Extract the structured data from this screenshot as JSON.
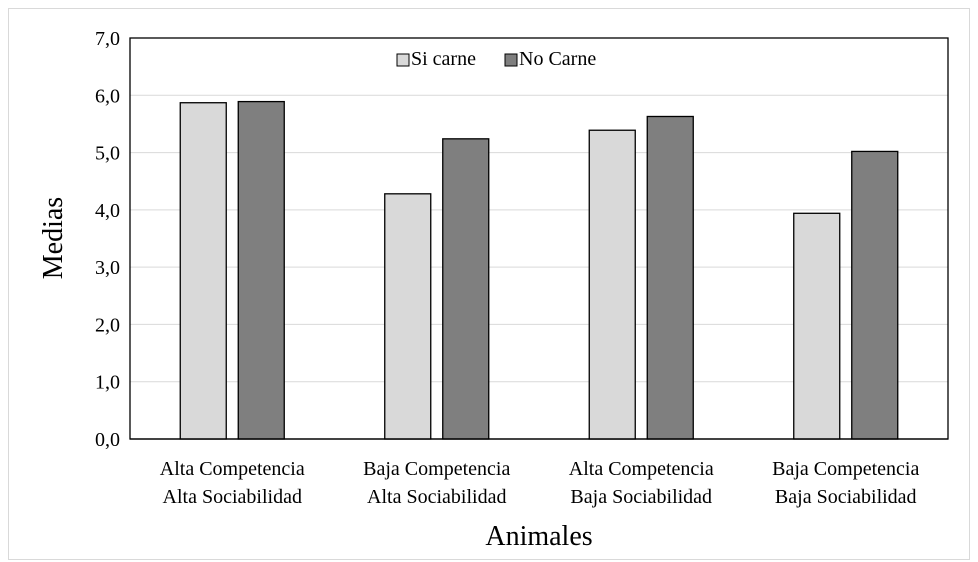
{
  "chart_data": {
    "type": "bar",
    "title": "",
    "xlabel": "Animales",
    "ylabel": "Medias",
    "ylim": [
      0,
      7
    ],
    "yticks": [
      "0,0",
      "1,0",
      "2,0",
      "3,0",
      "4,0",
      "5,0",
      "6,0",
      "7,0"
    ],
    "grid": true,
    "legend_position": "top-center",
    "categories": [
      [
        "Alta Competencia",
        "Alta Sociabilidad"
      ],
      [
        "Baja Competencia",
        "Alta Sociabilidad"
      ],
      [
        "Alta Competencia",
        "Baja Sociabilidad"
      ],
      [
        "Baja Competencia",
        "Baja Sociabilidad"
      ]
    ],
    "series": [
      {
        "name": "Si carne",
        "color": "#d9d9d9",
        "values": [
          5.87,
          4.28,
          5.39,
          3.94
        ]
      },
      {
        "name": "No Carne",
        "color": "#7f7f7f",
        "values": [
          5.89,
          5.24,
          5.63,
          5.02
        ]
      }
    ]
  }
}
